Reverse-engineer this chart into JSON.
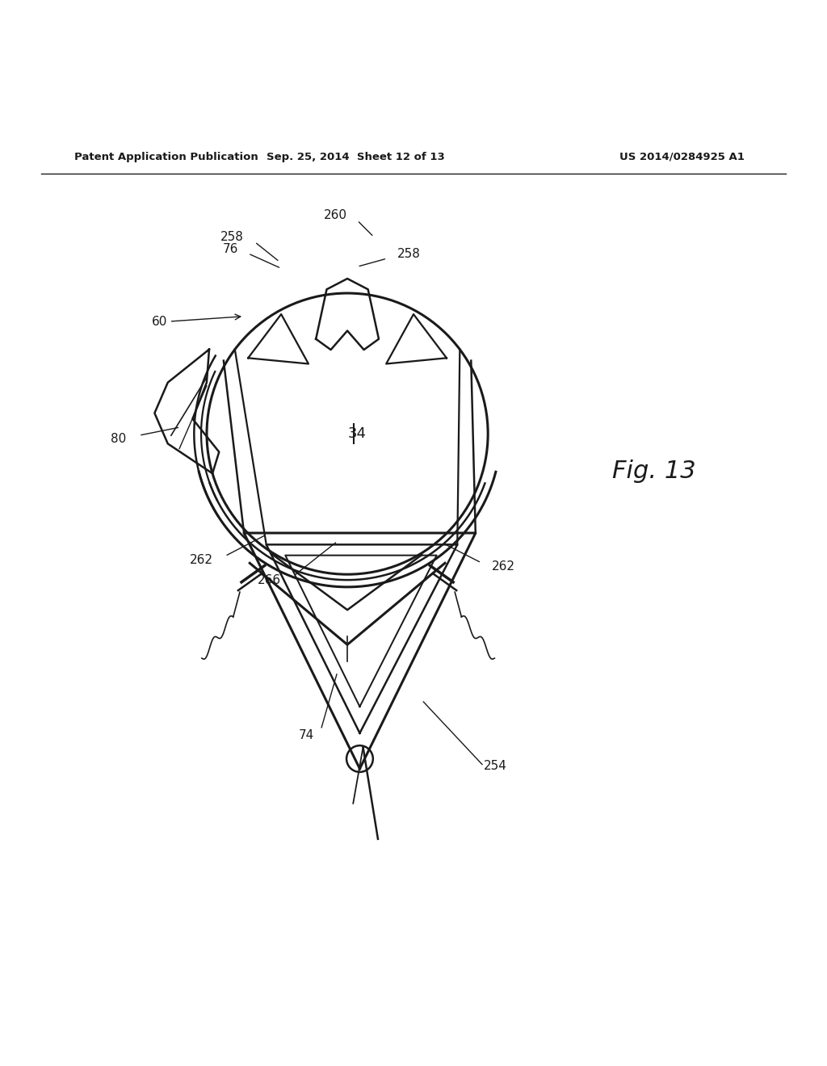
{
  "bg_color": "#ffffff",
  "line_color": "#1a1a1a",
  "text_color": "#000000",
  "header_left": "Patent Application Publication",
  "header_center": "Sep. 25, 2014  Sheet 12 of 13",
  "header_right": "US 2014/0284925 A1",
  "fig_label": "Fig. 13"
}
